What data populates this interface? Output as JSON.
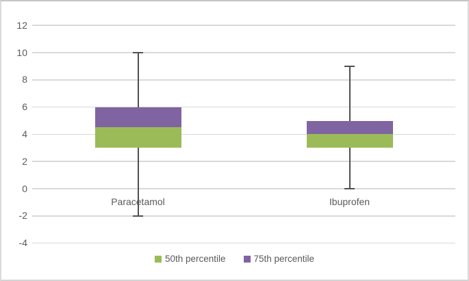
{
  "figure": {
    "background": "#ffffff",
    "border_color": "#d4d4d4"
  },
  "chart_data": {
    "type": "boxplot",
    "title": "",
    "categories": [
      "Paracetamol",
      "Ibuprofen"
    ],
    "boxes": [
      {
        "category": "Paracetamol",
        "whisker_min": -2,
        "q25": 3,
        "median": 4.5,
        "q75": 6,
        "whisker_max": 10
      },
      {
        "category": "Ibuprofen",
        "whisker_min": 0,
        "q25": 3,
        "median": 4,
        "q75": 5,
        "whisker_max": 9
      }
    ],
    "y_axis": {
      "min": -4,
      "max": 12,
      "tick_step": 2,
      "tick_labels": [
        "12",
        "10",
        "8",
        "6",
        "4",
        "2",
        "0",
        "-2",
        "-4"
      ]
    },
    "x_axis": {
      "label": "",
      "crosses_at": 0
    },
    "grid": true,
    "legend": {
      "position": "bottom",
      "entries": [
        {
          "label": "50th percentile",
          "color": "#9bbb59"
        },
        {
          "label": "75th percentile",
          "color": "#8064a2"
        }
      ]
    },
    "colors": {
      "p50_band": "#9bbb59",
      "p75_band": "#8064a2",
      "whisker": "#4f4f4f",
      "gridline": "#d9d9d9",
      "axis_text": "#595959"
    }
  }
}
